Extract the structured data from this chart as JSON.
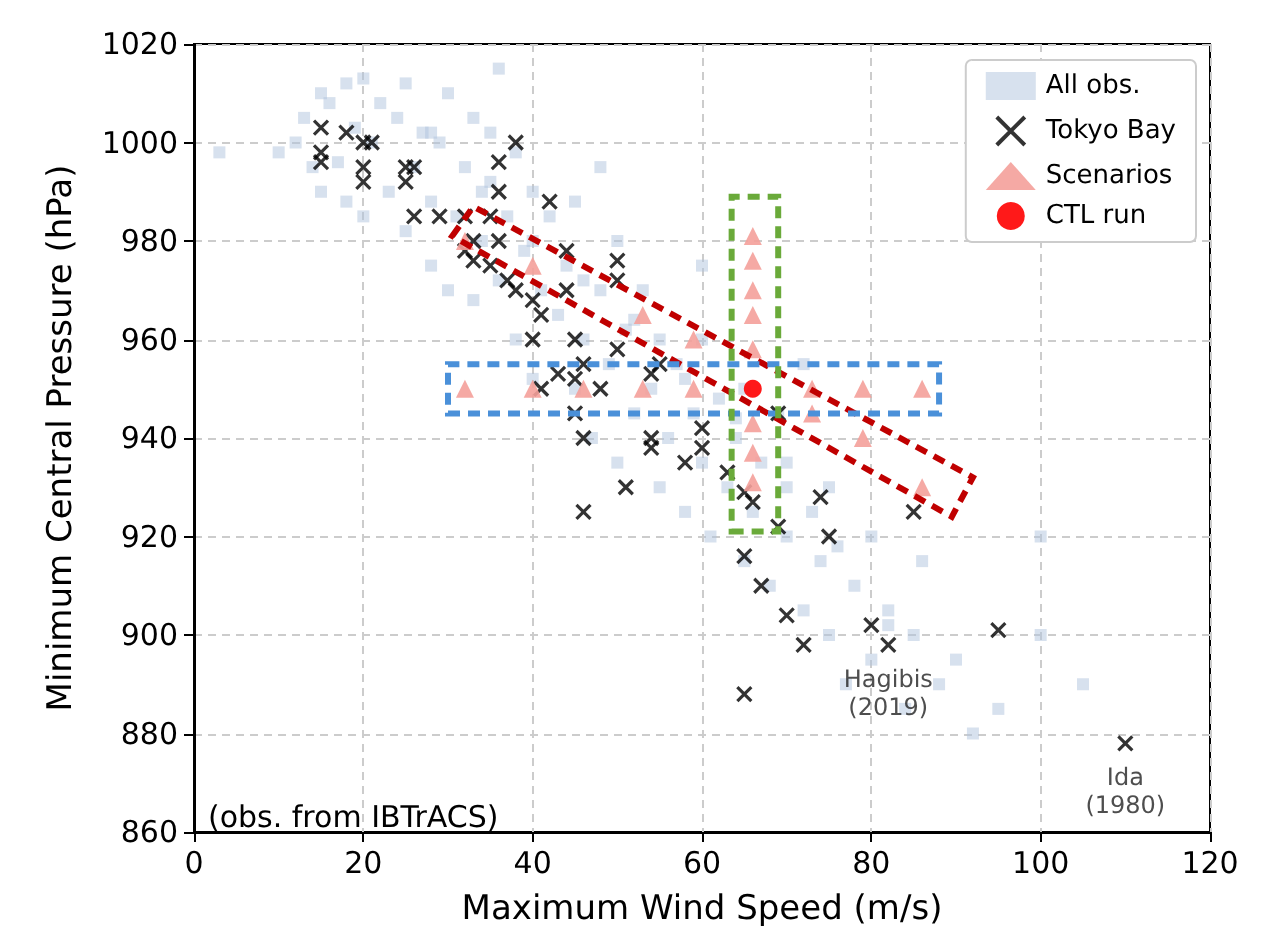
{
  "chart_data": {
    "type": "scatter",
    "xlabel": "Maximum Wind Speed (m/s)",
    "ylabel": "Minimum Central Pressure (hPa)",
    "xlim": [
      0,
      120
    ],
    "xticks": [
      0,
      20,
      40,
      60,
      80,
      100,
      120
    ],
    "ylim": [
      860,
      1020
    ],
    "yticks": [
      860,
      880,
      900,
      920,
      940,
      960,
      980,
      1000,
      1020
    ],
    "grid": true,
    "legend": "top right",
    "annotations": [
      {
        "text": "Hagibis\n(2019)",
        "x": 82,
        "y": 898
      },
      {
        "text": "Ida\n(1980)",
        "x": 110,
        "y": 878
      },
      "(obs. from IBTrACS)"
    ],
    "series": [
      {
        "name": "All obs.",
        "color": "#b0c4de",
        "marker": "square",
        "x": [
          3,
          10,
          12,
          13,
          14,
          15,
          15,
          16,
          17,
          18,
          18,
          19,
          20,
          20,
          21,
          22,
          23,
          24,
          25,
          25,
          26,
          27,
          28,
          28,
          29,
          30,
          30,
          31,
          32,
          33,
          33,
          34,
          35,
          35,
          36,
          37,
          38,
          38,
          39,
          40,
          40,
          41,
          42,
          43,
          44,
          45,
          45,
          46,
          47,
          48,
          49,
          50,
          50,
          51,
          52,
          53,
          54,
          55,
          55,
          56,
          57,
          58,
          59,
          60,
          60,
          61,
          62,
          63,
          64,
          65,
          65,
          66,
          67,
          68,
          69,
          70,
          70,
          72,
          73,
          74,
          75,
          75,
          77,
          78,
          80,
          80,
          82,
          84,
          85,
          86,
          88,
          90,
          92,
          95,
          100,
          100,
          105,
          28,
          34,
          40,
          46,
          52,
          58,
          64,
          70,
          76,
          82,
          36,
          48,
          60,
          72
        ],
        "values": [
          998,
          998,
          1000,
          1005,
          995,
          1010,
          990,
          1008,
          996,
          1012,
          988,
          1003,
          1013,
          985,
          1000,
          1008,
          990,
          1005,
          1012,
          982,
          995,
          1002,
          975,
          988,
          1000,
          1010,
          970,
          985,
          995,
          1005,
          968,
          980,
          992,
          1002,
          972,
          985,
          998,
          960,
          978,
          990,
          952,
          970,
          985,
          965,
          975,
          950,
          988,
          960,
          940,
          970,
          955,
          980,
          935,
          962,
          945,
          970,
          950,
          930,
          960,
          940,
          955,
          925,
          945,
          935,
          960,
          920,
          948,
          930,
          940,
          915,
          950,
          925,
          935,
          910,
          945,
          920,
          935,
          905,
          925,
          915,
          900,
          930,
          890,
          910,
          920,
          895,
          905,
          885,
          900,
          915,
          890,
          895,
          880,
          885,
          920,
          900,
          890,
          1002,
          990,
          980,
          972,
          964,
          952,
          944,
          930,
          918,
          902,
          1015,
          995,
          975,
          955
        ]
      },
      {
        "name": "Tokyo Bay",
        "color": "#000000",
        "marker": "cross",
        "x": [
          15,
          15,
          15,
          18,
          20,
          20,
          20,
          21,
          25,
          25,
          26,
          26,
          29,
          32,
          33,
          32,
          33,
          35,
          35,
          36,
          36,
          36,
          37,
          38,
          40,
          40,
          41,
          41,
          43,
          44,
          44,
          45,
          45,
          45,
          46,
          46,
          46,
          48,
          50,
          50,
          50,
          51,
          54,
          54,
          54,
          58,
          60,
          60,
          65,
          66,
          65,
          65,
          67,
          69,
          69,
          70,
          72,
          74,
          75,
          80,
          82,
          85,
          95,
          110,
          38,
          42,
          55,
          63
        ],
        "values": [
          1003,
          998,
          996,
          1002,
          1000,
          995,
          992,
          1000,
          995,
          992,
          995,
          985,
          985,
          985,
          980,
          978,
          976,
          975,
          985,
          996,
          990,
          980,
          972,
          970,
          968,
          960,
          965,
          950,
          953,
          978,
          970,
          960,
          952,
          945,
          955,
          940,
          925,
          950,
          976,
          972,
          958,
          930,
          953,
          940,
          938,
          935,
          942,
          938,
          929,
          927,
          916,
          888,
          910,
          945,
          922,
          904,
          898,
          928,
          920,
          902,
          898,
          925,
          901,
          878,
          1000,
          988,
          955,
          933
        ]
      },
      {
        "name": "Scenarios",
        "color": "#f4a09a",
        "marker": "triangle",
        "x": [
          32,
          40,
          53,
          59,
          73,
          79,
          86,
          32,
          40,
          46,
          53,
          59,
          73,
          79,
          86,
          66,
          66,
          66,
          66,
          66,
          66,
          66,
          66
        ],
        "values": [
          980,
          975,
          965,
          960,
          945,
          940,
          930,
          950,
          950,
          950,
          950,
          950,
          950,
          950,
          950,
          981,
          976,
          970,
          965,
          958,
          943,
          937,
          931
        ]
      },
      {
        "name": "CTL run",
        "color": "#ff0000",
        "marker": "circle",
        "x": [
          66
        ],
        "values": [
          950
        ]
      }
    ]
  }
}
